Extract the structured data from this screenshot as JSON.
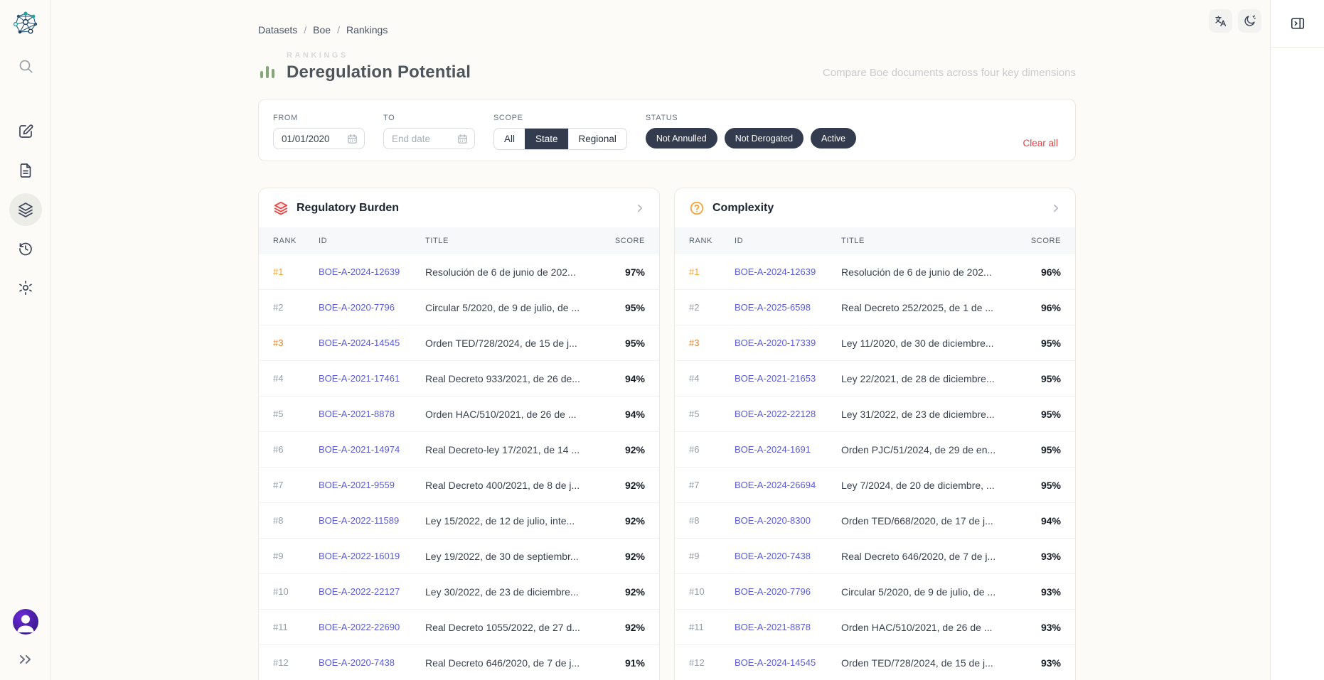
{
  "app": {
    "logo_icon": "network-logo",
    "toolbar_icons": [
      "translate-icon",
      "auto-dark-mode-icon"
    ],
    "right_panel_icon": "panel-right-toggle-icon"
  },
  "sidebar": {
    "items": [
      {
        "icon": "search-icon"
      },
      {
        "icon": "compose-icon"
      },
      {
        "icon": "document-icon"
      },
      {
        "icon": "layers-icon",
        "active": true
      },
      {
        "icon": "history-icon"
      },
      {
        "icon": "settings-gear-icon"
      }
    ],
    "avatar_icon": "user-avatar",
    "expand_icon": "double-chevron-right-icon"
  },
  "breadcrumb": {
    "items": [
      "Datasets",
      "Boe",
      "Rankings"
    ],
    "separator": "/"
  },
  "header": {
    "eyebrow": "RANKINGS",
    "title": "Deregulation Potential",
    "subtitle": "Compare Boe documents across four key dimensions",
    "title_icon": "bar-chart-icon",
    "title_icon_color": "#84A878"
  },
  "filters": {
    "from": {
      "label": "FROM",
      "value": "01/01/2020",
      "icon": "calendar-icon"
    },
    "to": {
      "label": "TO",
      "placeholder": "End date",
      "icon": "calendar-icon"
    },
    "scope": {
      "label": "SCOPE",
      "options": [
        "All",
        "State",
        "Regional"
      ],
      "selected": "State",
      "selected_bg": "#323C4E"
    },
    "status": {
      "label": "STATUS",
      "chips": [
        "Not Annulled",
        "Not Derogated",
        "Active"
      ],
      "chip_bg": "#323C4E"
    },
    "clear_all": "Clear all",
    "clear_all_color": "#E04343"
  },
  "rank_colors": {
    "first": "#F2A53B",
    "second": "#949BA4",
    "third": "#DC8435",
    "default": "#949BA4"
  },
  "tables": [
    {
      "title": "Regulatory Burden",
      "icon": "layers-icon",
      "icon_color": "#E84545",
      "columns": [
        "RANK",
        "ID",
        "TITLE",
        "SCORE"
      ],
      "rows": [
        {
          "rank": "#1",
          "id": "BOE-A-2024-12639",
          "title": "Resolución de 6 de junio de 202...",
          "score": "97%"
        },
        {
          "rank": "#2",
          "id": "BOE-A-2020-7796",
          "title": "Circular 5/2020, de 9 de julio, de ...",
          "score": "95%"
        },
        {
          "rank": "#3",
          "id": "BOE-A-2024-14545",
          "title": "Orden TED/728/2024, de 15 de j...",
          "score": "95%"
        },
        {
          "rank": "#4",
          "id": "BOE-A-2021-17461",
          "title": "Real Decreto 933/2021, de 26 de...",
          "score": "94%"
        },
        {
          "rank": "#5",
          "id": "BOE-A-2021-8878",
          "title": "Orden HAC/510/2021, de 26 de ...",
          "score": "94%"
        },
        {
          "rank": "#6",
          "id": "BOE-A-2021-14974",
          "title": "Real Decreto-ley 17/2021, de 14 ...",
          "score": "92%"
        },
        {
          "rank": "#7",
          "id": "BOE-A-2021-9559",
          "title": "Real Decreto 400/2021, de 8 de j...",
          "score": "92%"
        },
        {
          "rank": "#8",
          "id": "BOE-A-2022-11589",
          "title": "Ley 15/2022, de 12 de julio, inte...",
          "score": "92%"
        },
        {
          "rank": "#9",
          "id": "BOE-A-2022-16019",
          "title": "Ley 19/2022, de 30 de septiembr...",
          "score": "92%"
        },
        {
          "rank": "#10",
          "id": "BOE-A-2022-22127",
          "title": "Ley 30/2022, de 23 de diciembre...",
          "score": "92%"
        },
        {
          "rank": "#11",
          "id": "BOE-A-2022-22690",
          "title": "Real Decreto 1055/2022, de 27 d...",
          "score": "92%"
        },
        {
          "rank": "#12",
          "id": "BOE-A-2020-7438",
          "title": "Real Decreto 646/2020, de 7 de j...",
          "score": "91%"
        }
      ]
    },
    {
      "title": "Complexity",
      "icon": "question-circle-icon",
      "icon_color": "#F2A33C",
      "columns": [
        "RANK",
        "ID",
        "TITLE",
        "SCORE"
      ],
      "rows": [
        {
          "rank": "#1",
          "id": "BOE-A-2024-12639",
          "title": "Resolución de 6 de junio de 202...",
          "score": "96%"
        },
        {
          "rank": "#2",
          "id": "BOE-A-2025-6598",
          "title": "Real Decreto 252/2025, de 1 de ...",
          "score": "96%"
        },
        {
          "rank": "#3",
          "id": "BOE-A-2020-17339",
          "title": "Ley 11/2020, de 30 de diciembre...",
          "score": "95%"
        },
        {
          "rank": "#4",
          "id": "BOE-A-2021-21653",
          "title": "Ley 22/2021, de 28 de diciembre...",
          "score": "95%"
        },
        {
          "rank": "#5",
          "id": "BOE-A-2022-22128",
          "title": "Ley 31/2022, de 23 de diciembre...",
          "score": "95%"
        },
        {
          "rank": "#6",
          "id": "BOE-A-2024-1691",
          "title": "Orden PJC/51/2024, de 29 de en...",
          "score": "95%"
        },
        {
          "rank": "#7",
          "id": "BOE-A-2024-26694",
          "title": "Ley 7/2024, de 20 de diciembre, ...",
          "score": "95%"
        },
        {
          "rank": "#8",
          "id": "BOE-A-2020-8300",
          "title": "Orden TED/668/2020, de 17 de j...",
          "score": "94%"
        },
        {
          "rank": "#9",
          "id": "BOE-A-2020-7438",
          "title": "Real Decreto 646/2020, de 7 de j...",
          "score": "93%"
        },
        {
          "rank": "#10",
          "id": "BOE-A-2020-7796",
          "title": "Circular 5/2020, de 9 de julio, de ...",
          "score": "93%"
        },
        {
          "rank": "#11",
          "id": "BOE-A-2021-8878",
          "title": "Orden HAC/510/2021, de 26 de ...",
          "score": "93%"
        },
        {
          "rank": "#12",
          "id": "BOE-A-2024-14545",
          "title": "Orden TED/728/2024, de 15 de j...",
          "score": "93%"
        }
      ]
    }
  ]
}
